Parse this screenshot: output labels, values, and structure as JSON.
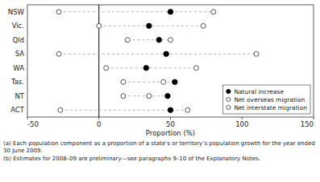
{
  "chart_data": {
    "type": "dot",
    "orientation": "horizontal",
    "categories": [
      "NSW",
      "Vic.",
      "Qld",
      "SA",
      "WA",
      "Tas.",
      "NT",
      "ACT"
    ],
    "series": [
      {
        "name": "Natural increase",
        "color": "#000000",
        "marker": "circle",
        "values": [
          50,
          35,
          42,
          47,
          33,
          53,
          48,
          50
        ]
      },
      {
        "name": "Net overseas migration",
        "color": "#444444",
        "marker": "ring",
        "values": [
          80,
          73,
          50,
          110,
          68,
          45,
          35,
          62
        ]
      },
      {
        "name": "Net interstate migration",
        "color": "#444444",
        "marker": "ring",
        "values": [
          -28,
          0,
          20,
          -28,
          5,
          17,
          17,
          -27
        ]
      }
    ],
    "xlim": [
      -50,
      150
    ],
    "xticks": [
      -50,
      0,
      50,
      100,
      150
    ],
    "xlabel": "Proportion (%)",
    "annotations": [
      "(a) Each population component as a proportion of a state’s or territory’s population growth for the year ended 30 June 2009.",
      "(b) Estimates for 2008–09 are preliminary—see paragraphs 9–10 of the Explanatory Notes."
    ],
    "legend": "lower right",
    "grid": false
  }
}
